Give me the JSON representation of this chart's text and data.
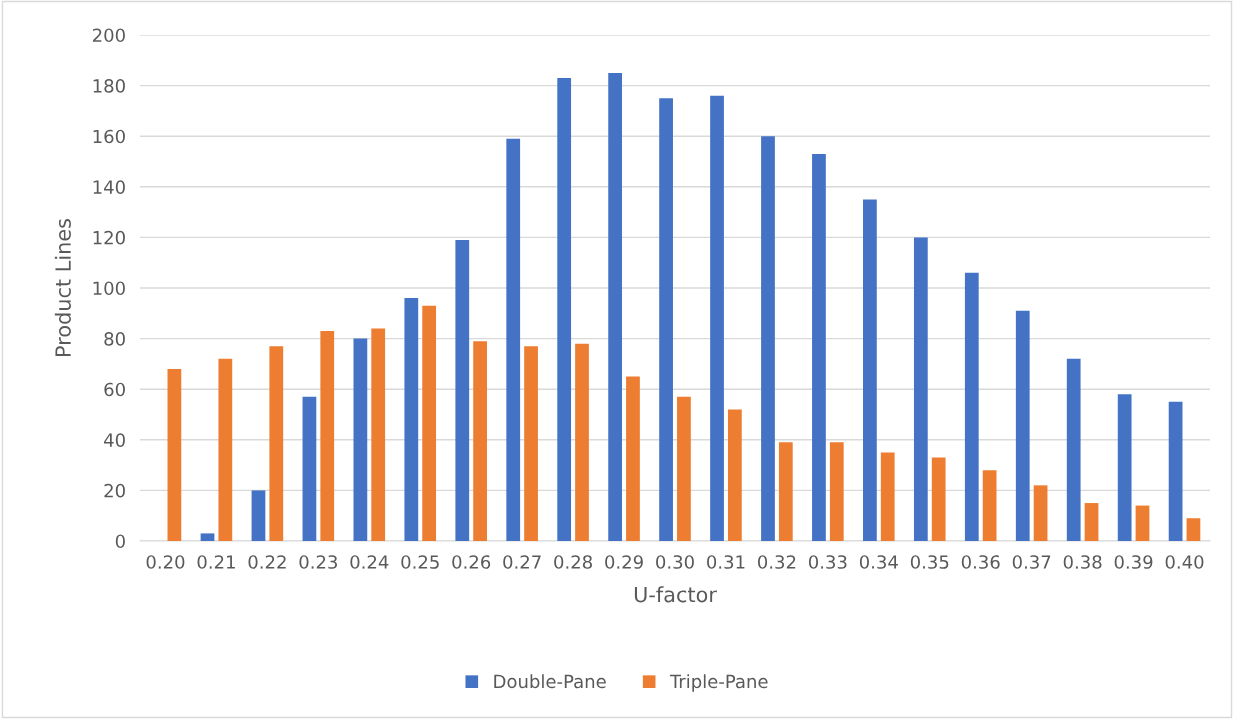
{
  "chart_data": {
    "type": "bar",
    "xlabel": "U-factor",
    "ylabel": "Product Lines",
    "categories": [
      "0.20",
      "0.21",
      "0.22",
      "0.23",
      "0.24",
      "0.25",
      "0.26",
      "0.27",
      "0.28",
      "0.29",
      "0.30",
      "0.31",
      "0.32",
      "0.33",
      "0.34",
      "0.35",
      "0.36",
      "0.37",
      "0.38",
      "0.39",
      "0.40"
    ],
    "series": [
      {
        "name": "Double-Pane",
        "color": "#4472c4",
        "values": [
          null,
          3,
          20,
          57,
          80,
          96,
          119,
          159,
          183,
          185,
          175,
          176,
          160,
          153,
          135,
          120,
          106,
          91,
          72,
          58,
          55
        ]
      },
      {
        "name": "Triple-Pane",
        "color": "#ed7d31",
        "values": [
          68,
          72,
          77,
          83,
          84,
          93,
          79,
          77,
          78,
          65,
          57,
          52,
          39,
          39,
          35,
          33,
          28,
          22,
          15,
          14,
          9
        ]
      }
    ],
    "ylim": [
      0,
      200
    ],
    "yticks": [
      0,
      20,
      40,
      60,
      80,
      100,
      120,
      140,
      160,
      180,
      200
    ],
    "grid": "y",
    "legend": "bottom"
  }
}
